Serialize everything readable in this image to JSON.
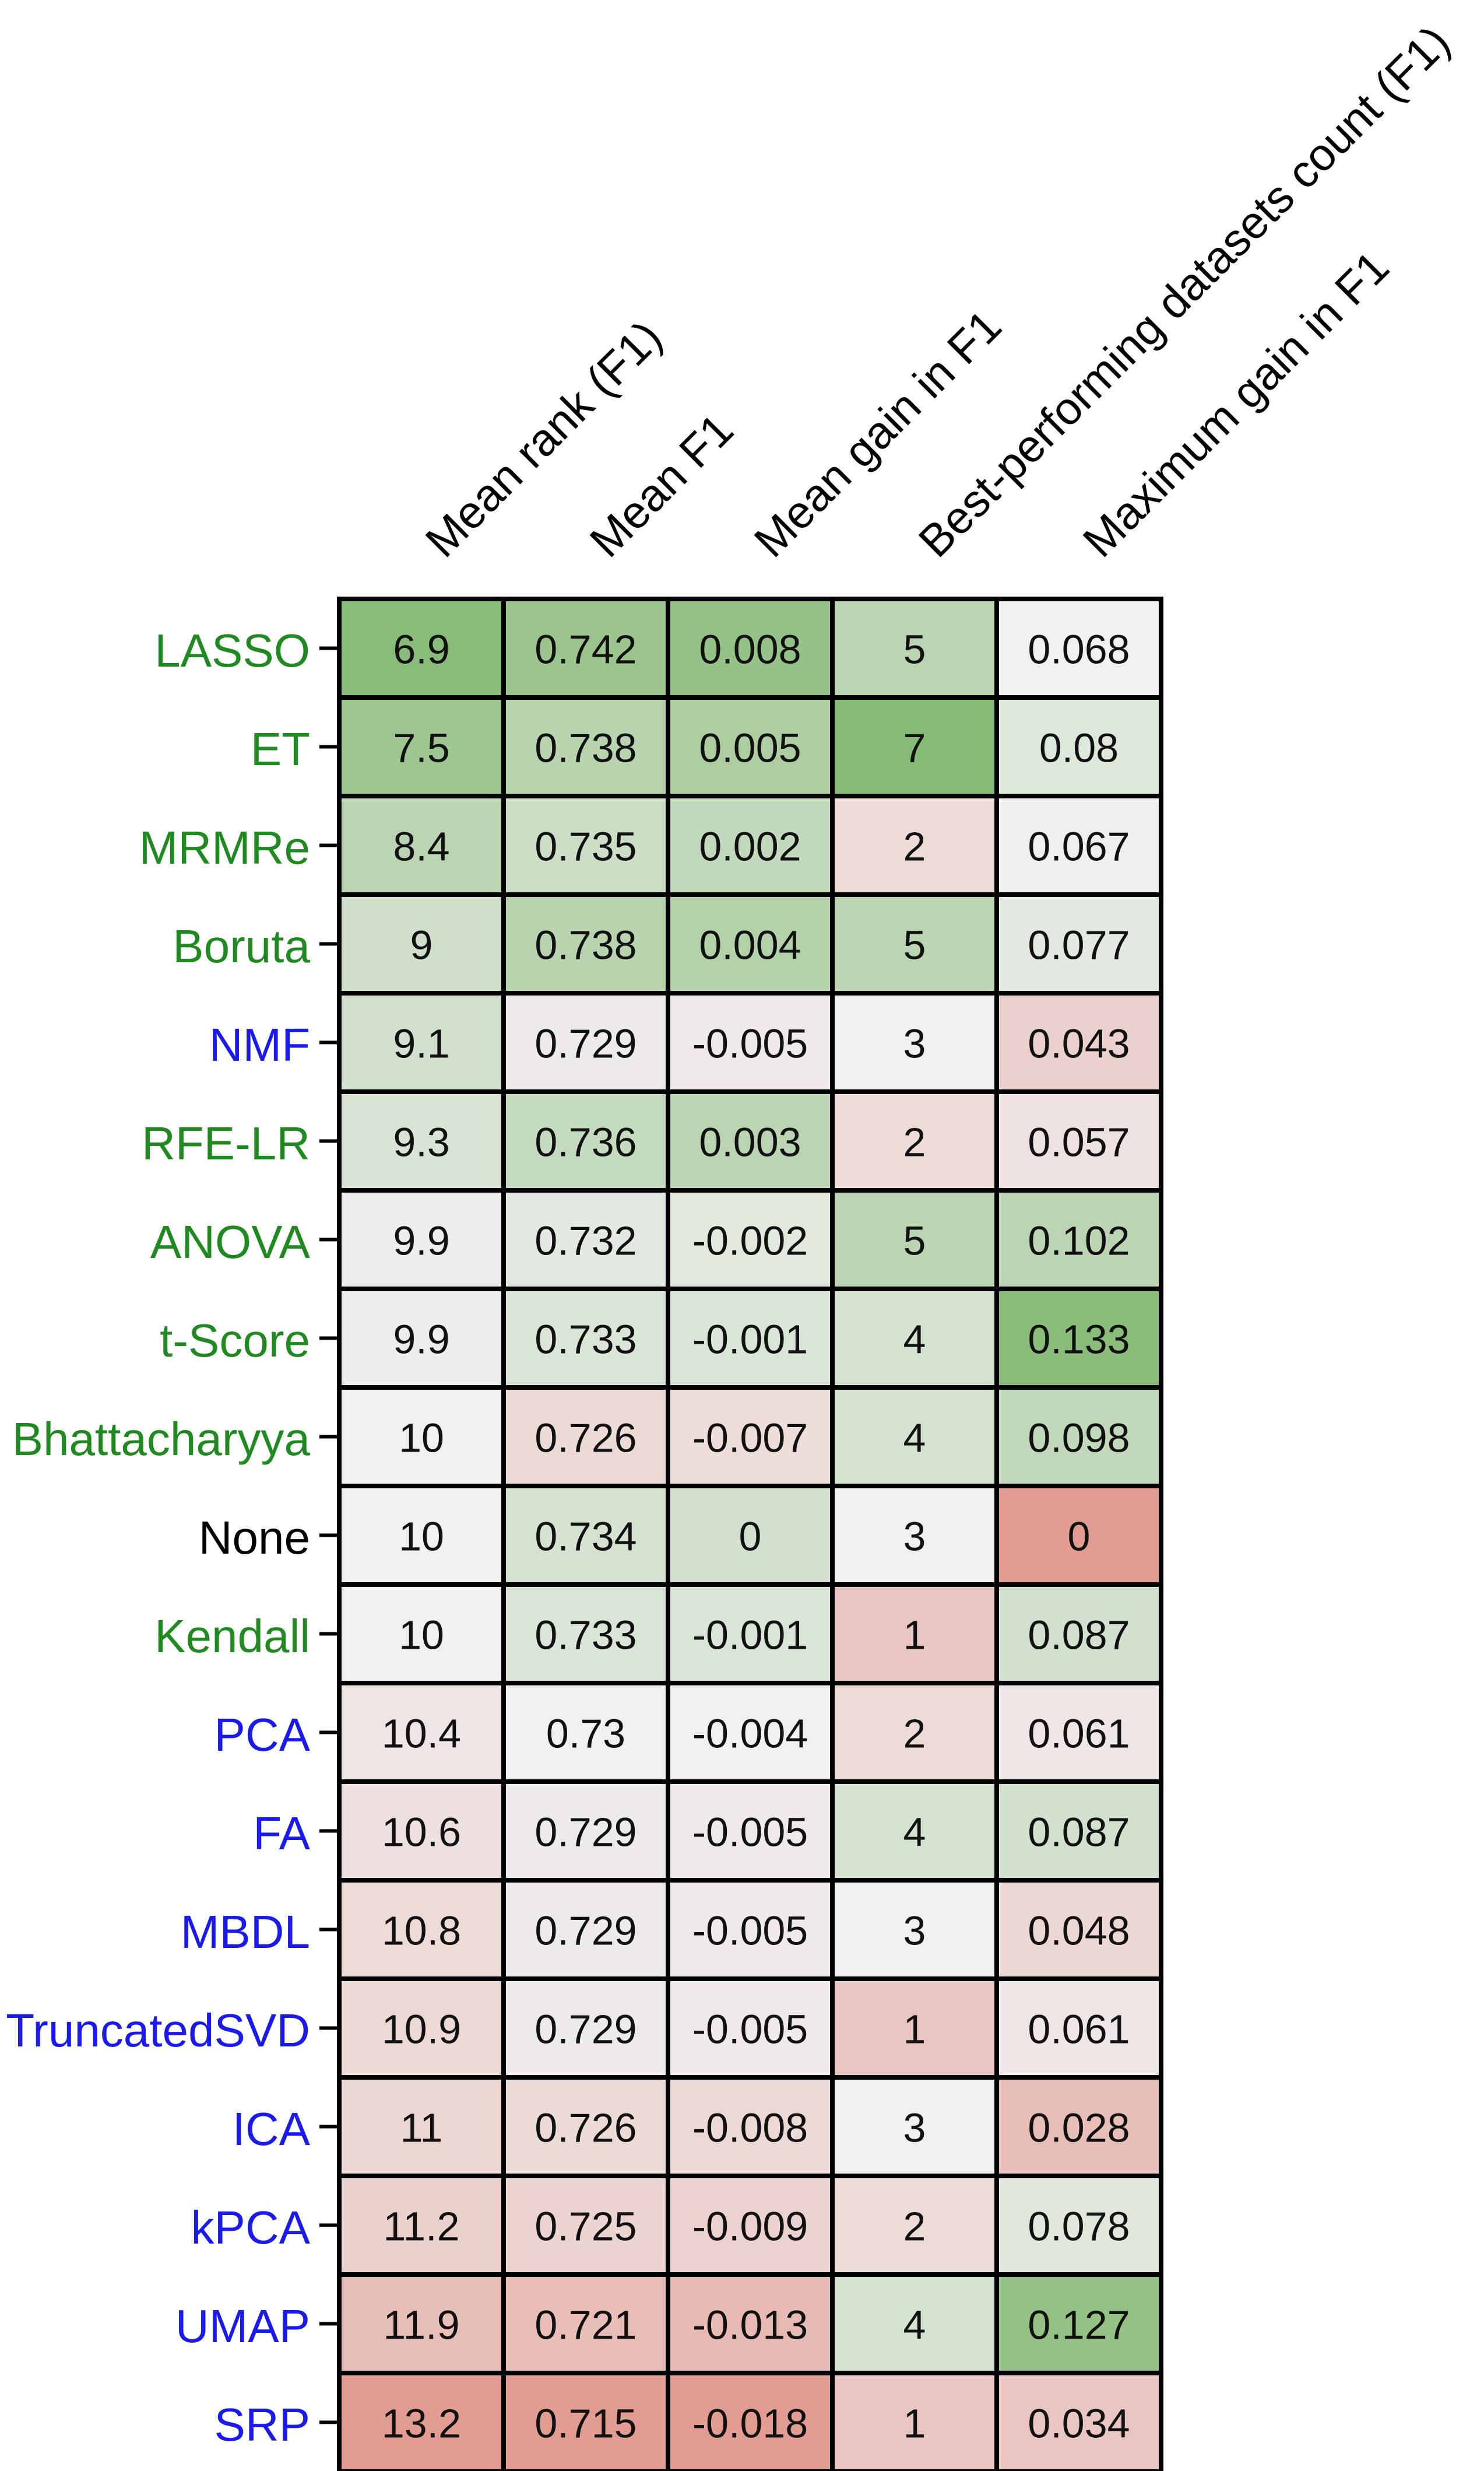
{
  "chart_data": {
    "type": "heatmap",
    "columns": [
      "Mean rank (F1)",
      "Mean F1",
      "Mean gain in F1",
      "Best-performing datasets count (F1)",
      "Maximum gain in F1"
    ],
    "rows": [
      {
        "name": "LASSO",
        "group": "feature-selection",
        "values": [
          "6.9",
          "0.742",
          "0.008",
          "5",
          "0.068"
        ]
      },
      {
        "name": "ET",
        "group": "feature-selection",
        "values": [
          "7.5",
          "0.738",
          "0.005",
          "7",
          "0.08"
        ]
      },
      {
        "name": "MRMRe",
        "group": "feature-selection",
        "values": [
          "8.4",
          "0.735",
          "0.002",
          "2",
          "0.067"
        ]
      },
      {
        "name": "Boruta",
        "group": "feature-selection",
        "values": [
          "9",
          "0.738",
          "0.004",
          "5",
          "0.077"
        ]
      },
      {
        "name": "NMF",
        "group": "projection",
        "values": [
          "9.1",
          "0.729",
          "-0.005",
          "3",
          "0.043"
        ]
      },
      {
        "name": "RFE-LR",
        "group": "feature-selection",
        "values": [
          "9.3",
          "0.736",
          "0.003",
          "2",
          "0.057"
        ]
      },
      {
        "name": "ANOVA",
        "group": "feature-selection",
        "values": [
          "9.9",
          "0.732",
          "-0.002",
          "5",
          "0.102"
        ]
      },
      {
        "name": "t-Score",
        "group": "feature-selection",
        "values": [
          "9.9",
          "0.733",
          "-0.001",
          "4",
          "0.133"
        ]
      },
      {
        "name": "Bhattacharyya",
        "group": "feature-selection",
        "values": [
          "10",
          "0.726",
          "-0.007",
          "4",
          "0.098"
        ]
      },
      {
        "name": "None",
        "group": "none",
        "values": [
          "10",
          "0.734",
          "0",
          "3",
          "0"
        ]
      },
      {
        "name": "Kendall",
        "group": "feature-selection",
        "values": [
          "10",
          "0.733",
          "-0.001",
          "1",
          "0.087"
        ]
      },
      {
        "name": "PCA",
        "group": "projection",
        "values": [
          "10.4",
          "0.73",
          "-0.004",
          "2",
          "0.061"
        ]
      },
      {
        "name": "FA",
        "group": "projection",
        "values": [
          "10.6",
          "0.729",
          "-0.005",
          "4",
          "0.087"
        ]
      },
      {
        "name": "MBDL",
        "group": "projection",
        "values": [
          "10.8",
          "0.729",
          "-0.005",
          "3",
          "0.048"
        ]
      },
      {
        "name": "TruncatedSVD",
        "group": "projection",
        "values": [
          "10.9",
          "0.729",
          "-0.005",
          "1",
          "0.061"
        ]
      },
      {
        "name": "ICA",
        "group": "projection",
        "values": [
          "11",
          "0.726",
          "-0.008",
          "3",
          "0.028"
        ]
      },
      {
        "name": "kPCA",
        "group": "projection",
        "values": [
          "11.2",
          "0.725",
          "-0.009",
          "2",
          "0.078"
        ]
      },
      {
        "name": "UMAP",
        "group": "projection",
        "values": [
          "11.9",
          "0.721",
          "-0.013",
          "4",
          "0.127"
        ]
      },
      {
        "name": "SRP",
        "group": "projection",
        "values": [
          "13.2",
          "0.715",
          "-0.018",
          "1",
          "0.034"
        ]
      }
    ],
    "color_scale": {
      "colormap": "diverging red-white-green",
      "low_color": "#e2988c",
      "neutral_color": "#f0f0f0",
      "high_color": "#80b86e",
      "lower_is_better_columns": [
        0
      ]
    },
    "row_label_colors": {
      "feature-selection": "#1f8a1f",
      "projection": "#1a1aee",
      "none": "#000000"
    },
    "grid": true
  }
}
